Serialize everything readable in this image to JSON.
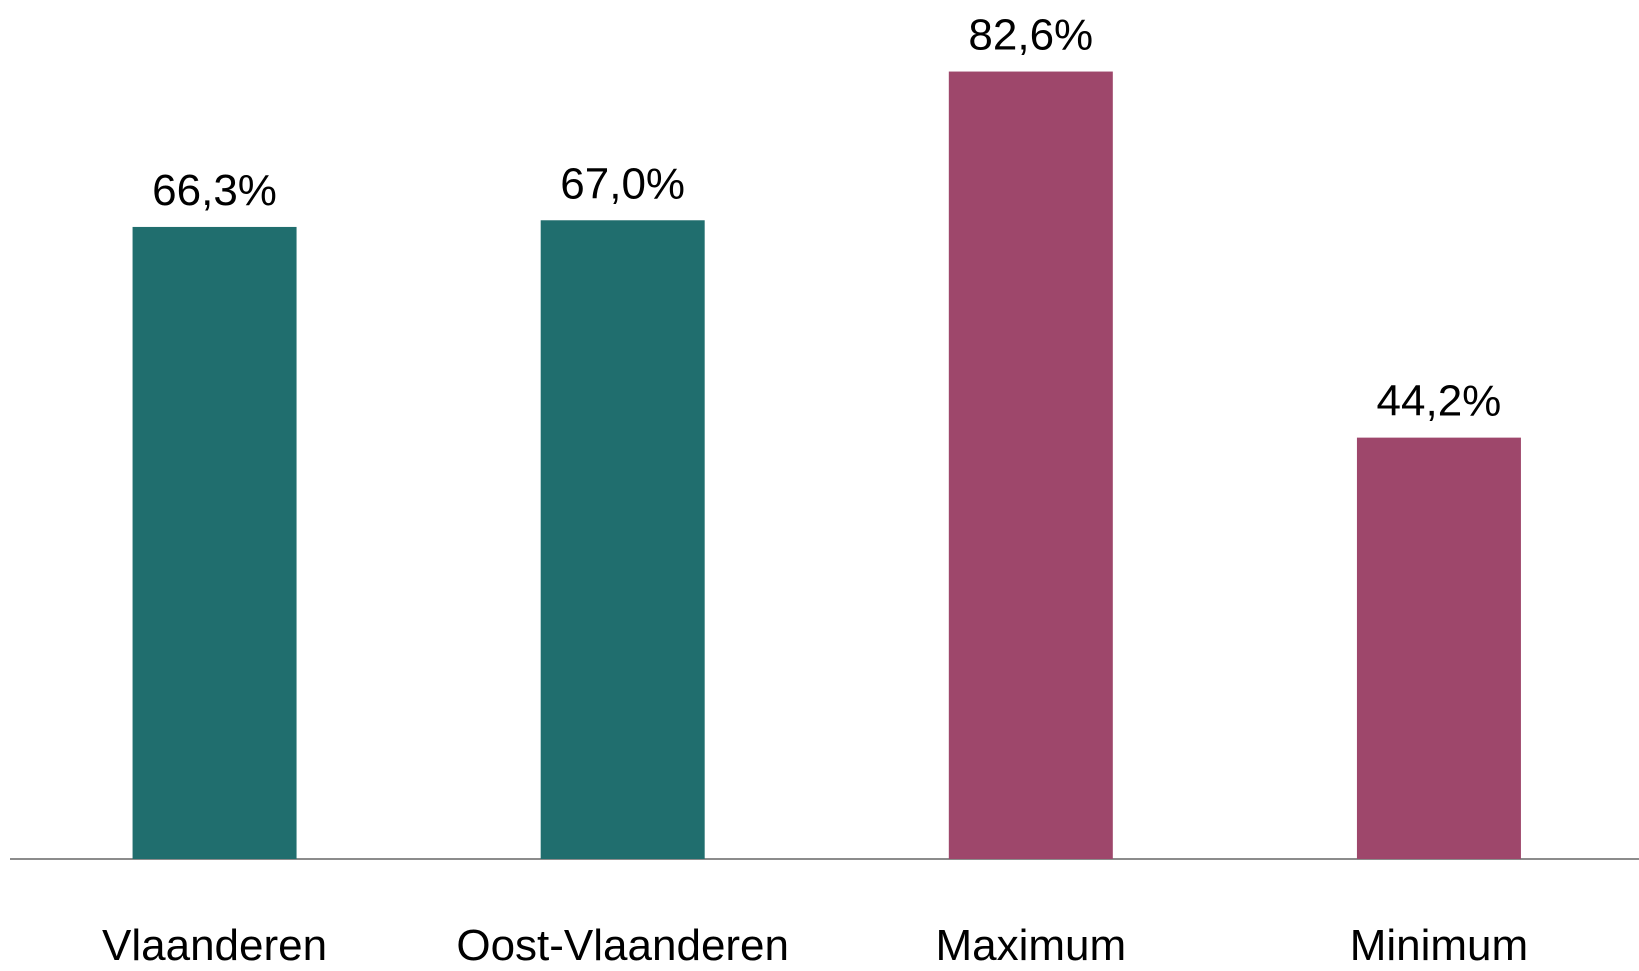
{
  "chart_data": {
    "type": "bar",
    "categories": [
      "Vlaanderen",
      "Oost-Vlaanderen",
      "Maximum",
      "Minimum"
    ],
    "values": [
      66.3,
      67.0,
      82.6,
      44.2
    ],
    "value_labels": [
      "66,3%",
      "67,0%",
      "82,6%",
      "44,2%"
    ],
    "colors": [
      "#206e6e",
      "#206e6e",
      "#9e476b",
      "#9e476b"
    ],
    "ylim": [
      0,
      90
    ]
  }
}
